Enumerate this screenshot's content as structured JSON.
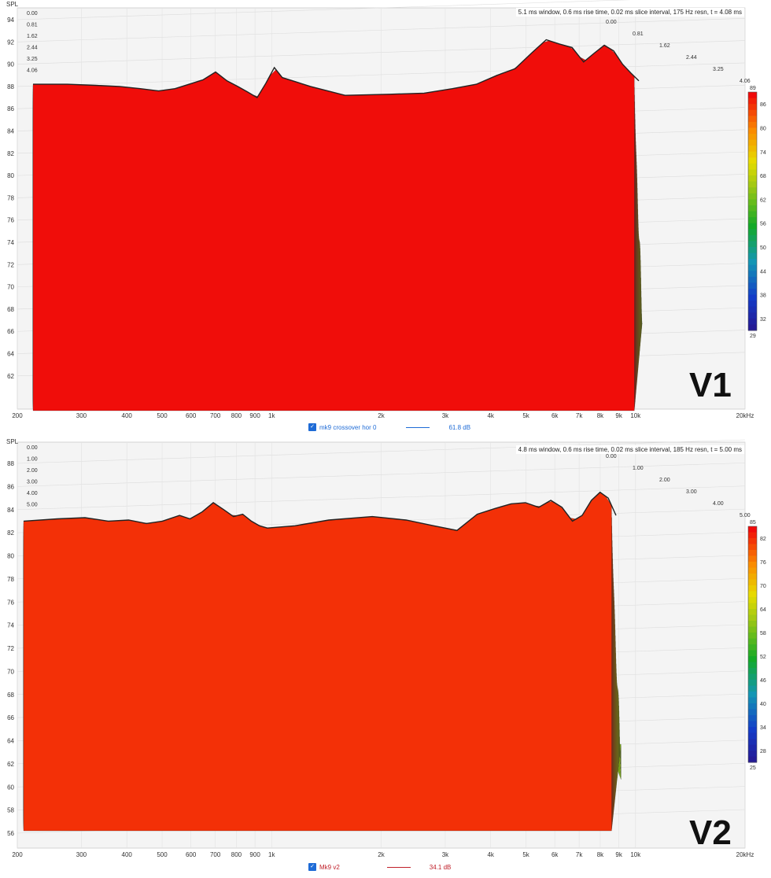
{
  "chart_data": [
    {
      "type": "area",
      "subtype": "cumulative spectral decay (waterfall)",
      "id": "v1",
      "panel_tag": "V1",
      "ylabel": "SPL",
      "params_text": "5.1 ms window, 0.6 ms rise time, 0.02 ms slice interval, 175 Hz resn, t = 4.08 ms",
      "x_ticks": [
        "200",
        "300",
        "400",
        "500",
        "600",
        "700",
        "800",
        "900",
        "1k",
        "2k",
        "3k",
        "4k",
        "5k",
        "6k",
        "7k",
        "8k",
        "9k",
        "10k",
        "20kHz"
      ],
      "x_tick_values": [
        200,
        300,
        400,
        500,
        600,
        700,
        800,
        900,
        1000,
        2000,
        3000,
        4000,
        5000,
        6000,
        7000,
        8000,
        9000,
        10000,
        20000
      ],
      "xlim": [
        200,
        20000
      ],
      "y_ticks": [
        "94",
        "92",
        "90",
        "88",
        "86",
        "84",
        "82",
        "80",
        "78",
        "76",
        "74",
        "72",
        "70",
        "68",
        "66",
        "64",
        "62"
      ],
      "ylim": [
        61,
        95
      ],
      "time_ticks": [
        "0.00",
        "0.81",
        "1.62",
        "2.44",
        "3.25",
        "4.06"
      ],
      "time_unit": "ms",
      "colorbar": {
        "max_label": "89",
        "min_label": "29",
        "ticks": [
          "86",
          "80",
          "74",
          "68",
          "62",
          "56",
          "50",
          "44",
          "38",
          "32"
        ],
        "min": 29,
        "max": 89
      },
      "front_curve": {
        "x": [
          200,
          250,
          300,
          350,
          400,
          450,
          500,
          560,
          600,
          650,
          700,
          750,
          800,
          850,
          900,
          950,
          1000,
          1200,
          1500,
          2000,
          2500,
          3000,
          3500,
          4000,
          4500,
          5000,
          5500,
          6000,
          6500,
          7000,
          7500,
          8000,
          8500,
          9000,
          9500,
          10000
        ],
        "y": [
          88.2,
          88.2,
          88.1,
          88.0,
          87.8,
          87.6,
          87.8,
          88.3,
          88.6,
          89.3,
          88.5,
          88.0,
          87.5,
          87.0,
          88.3,
          89.7,
          88.8,
          88.0,
          87.2,
          87.3,
          87.4,
          87.8,
          88.2,
          89.0,
          89.6,
          91.0,
          92.2,
          91.8,
          91.5,
          90.2,
          91.0,
          91.7,
          91.2,
          90.0,
          89.2,
          88.5
        ]
      },
      "last_slice": {
        "x": [
          3000,
          4000,
          5000,
          6000,
          7000,
          8000,
          9000,
          10000
        ],
        "y": [
          66.5,
          66.8,
          67.0,
          67.3,
          67.6,
          67.9,
          68.1,
          68.2
        ]
      },
      "legend": {
        "name": "mk9 crossover hor 0",
        "value": "61.8 dB",
        "color": "#1e6bd6"
      }
    },
    {
      "type": "area",
      "subtype": "cumulative spectral decay (waterfall)",
      "id": "v2",
      "panel_tag": "V2",
      "ylabel": "SPL",
      "params_text": "4.8 ms window, 0.6 ms rise time, 0.02 ms slice interval, 185 Hz resn, t = 5.00 ms",
      "x_ticks": [
        "200",
        "300",
        "400",
        "500",
        "600",
        "700",
        "800",
        "900",
        "1k",
        "2k",
        "3k",
        "4k",
        "5k",
        "6k",
        "7k",
        "8k",
        "9k",
        "10k",
        "20kHz"
      ],
      "x_tick_values": [
        200,
        300,
        400,
        500,
        600,
        700,
        800,
        900,
        1000,
        2000,
        3000,
        4000,
        5000,
        6000,
        7000,
        8000,
        9000,
        10000,
        20000
      ],
      "xlim": [
        200,
        20000
      ],
      "y_ticks": [
        "88",
        "86",
        "84",
        "82",
        "80",
        "78",
        "76",
        "74",
        "72",
        "70",
        "68",
        "66",
        "64",
        "62",
        "60",
        "58",
        "56"
      ],
      "ylim": [
        55,
        89
      ],
      "time_ticks": [
        "0.00",
        "1.00",
        "2.00",
        "3.00",
        "4.00",
        "5.00"
      ],
      "time_unit": "ms",
      "colorbar": {
        "max_label": "85",
        "min_label": "25",
        "ticks": [
          "82",
          "76",
          "70",
          "64",
          "58",
          "52",
          "46",
          "40",
          "34",
          "28"
        ],
        "min": 25,
        "max": 85
      },
      "front_curve": {
        "x": [
          200,
          250,
          300,
          350,
          400,
          450,
          500,
          560,
          600,
          650,
          700,
          750,
          800,
          850,
          900,
          950,
          1000,
          1200,
          1500,
          2000,
          2500,
          3000,
          3500,
          4000,
          4500,
          5000,
          5500,
          6000,
          6500,
          7000,
          7500,
          8000,
          8500,
          9000,
          9500,
          10000
        ],
        "y": [
          83.0,
          83.2,
          83.3,
          83.0,
          83.1,
          82.8,
          83.0,
          83.5,
          83.2,
          83.8,
          84.6,
          84.0,
          83.4,
          83.6,
          83.0,
          82.6,
          82.4,
          82.6,
          83.1,
          83.4,
          83.1,
          82.6,
          82.2,
          83.6,
          84.1,
          84.5,
          84.6,
          84.2,
          84.8,
          84.2,
          83.0,
          83.5,
          84.8,
          85.5,
          85.0,
          83.5
        ]
      },
      "last_slice": {
        "x": [
          3000,
          4000,
          5000,
          6000,
          7000,
          8000,
          9000,
          10000
        ],
        "y": [
          60.4,
          60.6,
          60.8,
          61.0,
          61.3,
          61.6,
          61.9,
          62.2
        ]
      },
      "legend": {
        "name": "Mk9 v2",
        "value": "34.1 dB",
        "color": "#c0202a"
      }
    }
  ]
}
